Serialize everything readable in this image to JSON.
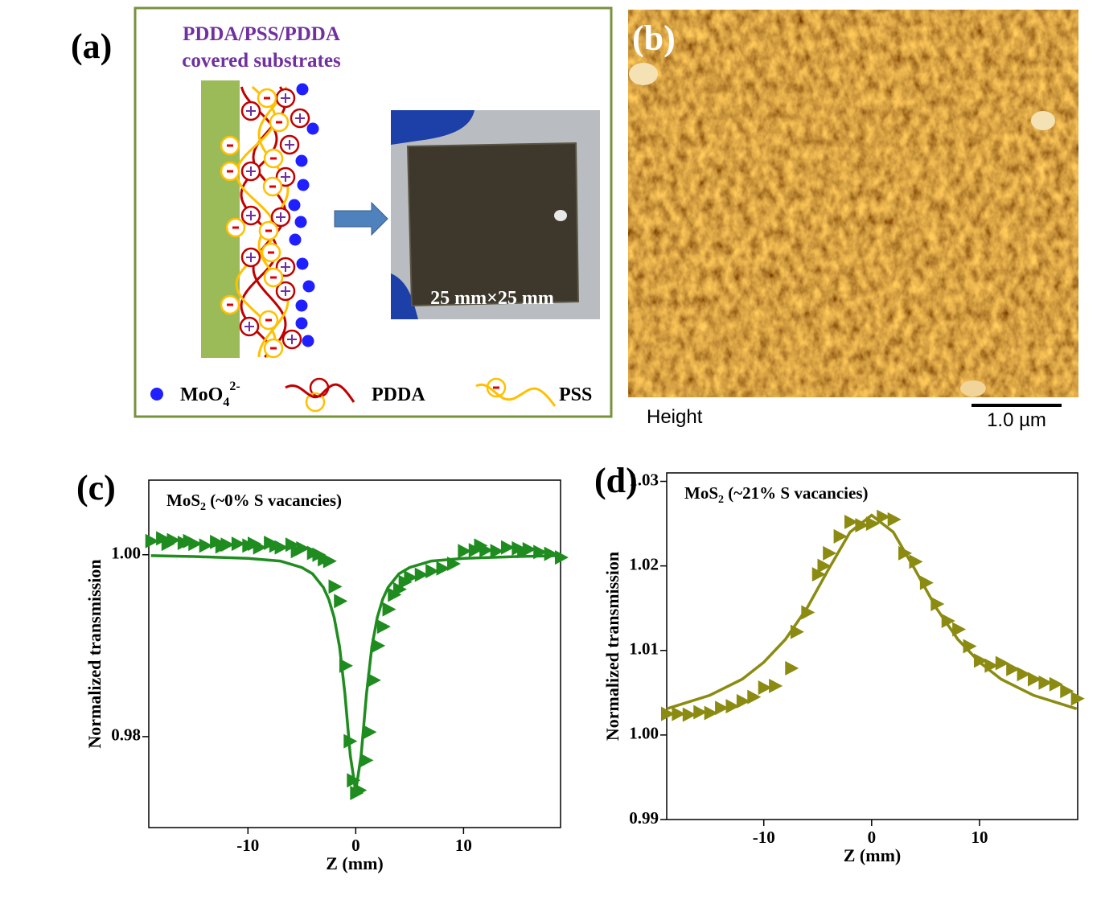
{
  "panel_a": {
    "label": "(a)",
    "title_lines": [
      "PDDA/PSS/PDDA",
      "covered substrates"
    ],
    "photo_caption": "25 mm×25 mm",
    "legend": [
      {
        "text": "MoO",
        "sub": "4",
        "sup": "2-"
      },
      {
        "text": "PDDA"
      },
      {
        "text": "PSS"
      }
    ]
  },
  "panel_b": {
    "label": "(b)",
    "channel": "Height",
    "scale_bar": "1.0 µm"
  },
  "chart_data": [
    {
      "type": "scatter",
      "panel_label": "(c)",
      "title": {
        "text": "MoS",
        "sub": "2",
        "rest": " (~0% S vacancies)"
      },
      "x_label": "Z (mm)",
      "y_label": "Normalized transmission",
      "xlim": [
        -19.2,
        19.0
      ],
      "ylim": [
        0.97,
        1.0082
      ],
      "xticks": [
        -10,
        0,
        10
      ],
      "yticks": [
        0.98,
        {
          "value": 1,
          "label": "1.00"
        }
      ],
      "series": [
        {
          "style": "markers",
          "color": "#1e8c1e",
          "x": [
            -19,
            -18,
            -17.5,
            -17,
            -16,
            -15.5,
            -15,
            -14,
            -13,
            -12.5,
            -12,
            -11,
            -10,
            -9.5,
            -9,
            -8,
            -7.5,
            -7,
            -6,
            -5.5,
            -5,
            -4,
            -3.5,
            -3,
            -2.5,
            -2,
            -1.5,
            -1,
            -0.6,
            -0.3,
            0,
            0.3,
            0.9,
            1.2,
            1.6,
            2,
            2.5,
            3,
            3.5,
            4,
            4.5,
            5,
            6,
            7,
            8,
            9,
            10,
            11,
            11.5,
            12,
            13,
            14,
            15,
            15.5,
            16,
            17,
            18,
            19
          ],
          "values": [
            1.0015,
            1.0018,
            1.0012,
            1.0016,
            1.0013,
            1.0015,
            1.0012,
            1.001,
            1.0014,
            1.0009,
            1.0011,
            1.0012,
            1.001,
            1.0012,
            1.0008,
            1.0013,
            1.001,
            1.0008,
            1.0011,
            1.0004,
            1.0007,
            1.0002,
            1.0,
            0.9995,
            0.9993,
            0.9965,
            0.9949,
            0.9878,
            0.9795,
            0.9752,
            0.9738,
            0.9741,
            0.9774,
            0.9805,
            0.9862,
            0.99,
            0.9921,
            0.994,
            0.9956,
            0.9962,
            0.997,
            0.9975,
            0.9978,
            0.9982,
            0.9985,
            0.999,
            1.0004,
            1.0005,
            1.001,
            1.0005,
            1.0004,
            1.0008,
            1.0007,
            1.0004,
            1.0006,
            1.0003,
            1.0001,
            0.9997
          ]
        },
        {
          "style": "line",
          "color": "#1e8c1e",
          "x": [
            -19,
            -15,
            -10,
            -7,
            -5,
            -4,
            -3,
            -2.5,
            -2,
            -1.5,
            -1,
            -0.5,
            0,
            0.5,
            1,
            1.5,
            2,
            2.5,
            3,
            4,
            5,
            7,
            10,
            15,
            19
          ],
          "values": [
            0.9999,
            0.9998,
            0.9996,
            0.9993,
            0.9986,
            0.9979,
            0.9964,
            0.9951,
            0.9931,
            0.9899,
            0.9847,
            0.9779,
            0.974,
            0.9779,
            0.9847,
            0.9899,
            0.9931,
            0.9951,
            0.9964,
            0.9979,
            0.9986,
            0.9993,
            0.9996,
            0.9998,
            0.9999
          ]
        }
      ]
    },
    {
      "type": "scatter",
      "panel_label": "(d)",
      "title": {
        "text": "MoS",
        "sub": "2",
        "rest": " (~21% S vacancies)"
      },
      "x_label": "Z (mm)",
      "y_label": "Normalized transmission",
      "xlim": [
        -19.0,
        19.1
      ],
      "ylim": [
        0.99,
        1.031
      ],
      "xticks": [
        -10,
        0,
        10
      ],
      "yticks": [
        0.99,
        {
          "value": 1,
          "label": "1.00"
        },
        1.01,
        1.02,
        1.03
      ],
      "series": [
        {
          "style": "markers",
          "color": "#8b8b12",
          "x": [
            -19,
            -18,
            -17,
            -16,
            -15,
            -14,
            -13,
            -12,
            -11,
            -10,
            -9,
            -7.5,
            -7,
            -6,
            -5,
            -4.5,
            -4,
            -3,
            -2,
            -1,
            0,
            1,
            2,
            3,
            4,
            5,
            6,
            7,
            8,
            9,
            10,
            11,
            12,
            13,
            14,
            15,
            16,
            17,
            18,
            19
          ],
          "values": [
            1.0025,
            1.0025,
            1.0024,
            1.0027,
            1.0026,
            1.0032,
            1.0034,
            1.004,
            1.0045,
            1.0056,
            1.0058,
            1.0079,
            1.0122,
            1.0145,
            1.019,
            1.02,
            1.0215,
            1.0235,
            1.0252,
            1.0248,
            1.025,
            1.0258,
            1.0255,
            1.0215,
            1.0205,
            1.018,
            1.0155,
            1.0135,
            1.0125,
            1.0105,
            1.0088,
            1.0082,
            1.0085,
            1.0078,
            1.0072,
            1.0066,
            1.0062,
            1.006,
            1.0052,
            1.0043
          ]
        },
        {
          "style": "line",
          "color": "#8b8b12",
          "x": [
            -19,
            -15,
            -12,
            -10,
            -8,
            -6,
            -4,
            -2,
            0,
            2,
            4,
            6,
            8,
            10,
            12,
            15,
            19
          ],
          "values": [
            1.0031,
            1.0047,
            1.0066,
            1.0086,
            1.0113,
            1.015,
            1.0196,
            1.024,
            1.026,
            1.024,
            1.0196,
            1.015,
            1.0113,
            1.0086,
            1.0066,
            1.0047,
            1.0031
          ]
        }
      ]
    }
  ]
}
